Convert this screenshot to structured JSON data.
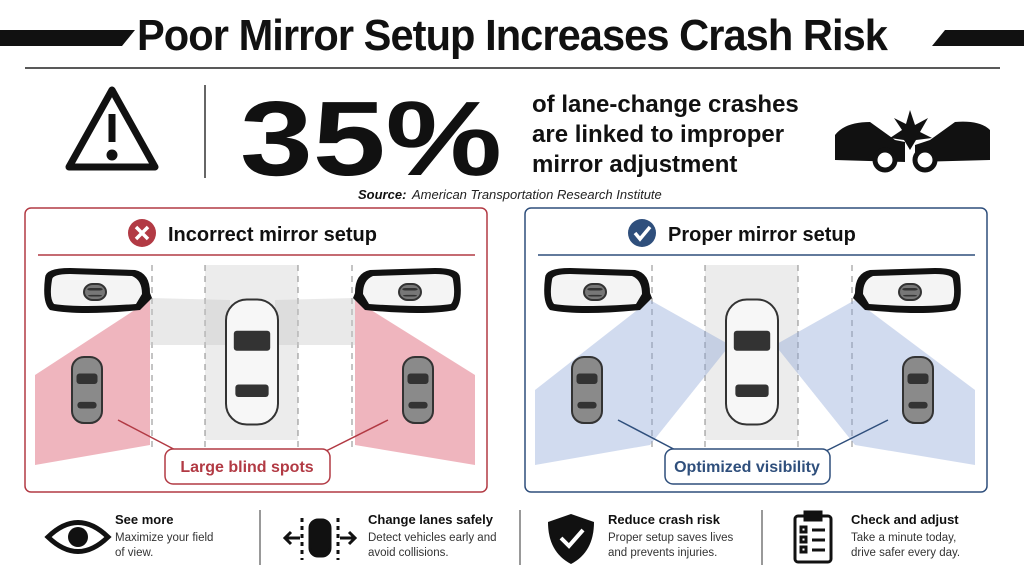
{
  "header": {
    "title": "Poor Mirror Setup Increases Crash Risk"
  },
  "stat": {
    "value": "35%",
    "lines": [
      "of lane-change crashes",
      "are linked to improper",
      "mirror adjustment"
    ]
  },
  "source": {
    "label": "Source:",
    "text": "American Transportation Research Institute"
  },
  "panels": [
    {
      "title": "Incorrect mirror setup",
      "caption": "Large blind spots"
    },
    {
      "title": "Proper mirror setup",
      "caption": "Optimized visibility"
    }
  ],
  "tips": [
    {
      "title": "See more",
      "lines": [
        "Maximize your field",
        "of view."
      ]
    },
    {
      "title": "Change lanes safely",
      "lines": [
        "Detect vehicles early and",
        "avoid collisions."
      ]
    },
    {
      "title": "Reduce crash risk",
      "lines": [
        "Proper setup saves lives",
        "and prevents injuries."
      ]
    },
    {
      "title": "Check and adjust",
      "lines": [
        "Take a minute today,",
        "drive safer every day."
      ]
    }
  ]
}
